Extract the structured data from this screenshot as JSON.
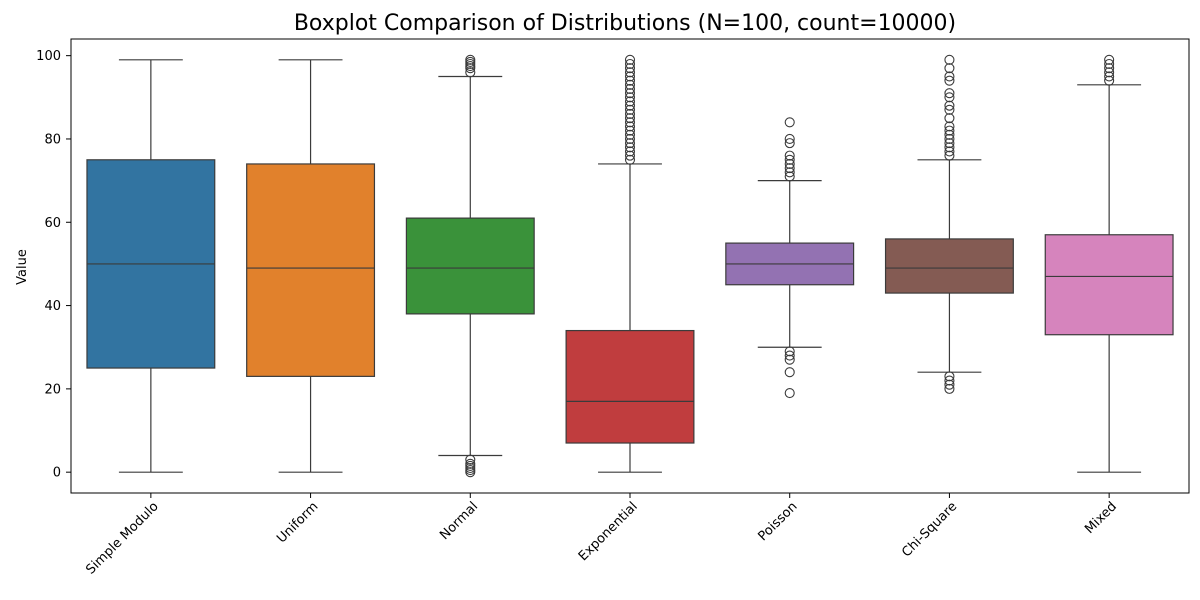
{
  "chart_data": {
    "type": "boxplot",
    "title": "Boxplot Comparison of Distributions (N=100, count=10000)",
    "xlabel": "",
    "ylabel": "Value",
    "ylim": [
      -5,
      104
    ],
    "yticks": [
      0,
      20,
      40,
      60,
      80,
      100
    ],
    "grid": false,
    "categories": [
      "Simple Modulo",
      "Uniform",
      "Normal",
      "Exponential",
      "Poisson",
      "Chi-Square",
      "Mixed"
    ],
    "colors": [
      "#3274a1",
      "#e1812c",
      "#3a923a",
      "#c03d3e",
      "#9372b2",
      "#845b53",
      "#d684bd"
    ],
    "series": [
      {
        "category": "Simple Modulo",
        "whisker_low": 0,
        "q1": 25,
        "median": 50,
        "q3": 75,
        "whisker_high": 99,
        "outliers": []
      },
      {
        "category": "Uniform",
        "whisker_low": 0,
        "q1": 23,
        "median": 49,
        "q3": 74,
        "whisker_high": 99,
        "outliers": []
      },
      {
        "category": "Normal",
        "whisker_low": 4,
        "q1": 38,
        "median": 49,
        "q3": 61,
        "whisker_high": 95,
        "outliers": [
          0,
          0.5,
          1,
          1.5,
          2,
          3,
          96,
          97,
          97.5,
          98,
          98.5,
          99
        ]
      },
      {
        "category": "Exponential",
        "whisker_low": 0,
        "q1": 7,
        "median": 17,
        "q3": 34,
        "whisker_high": 74,
        "outliers": [
          75,
          76,
          77,
          78,
          79,
          80,
          81,
          82,
          83,
          84,
          85,
          86,
          87,
          88,
          89,
          90,
          91,
          92,
          93,
          94,
          95,
          96,
          97,
          98,
          99
        ]
      },
      {
        "category": "Poisson",
        "whisker_low": 30,
        "q1": 45,
        "median": 50,
        "q3": 55,
        "whisker_high": 70,
        "outliers": [
          19,
          24,
          27,
          28,
          29,
          71,
          72,
          73,
          74,
          75,
          76,
          79,
          80,
          84
        ]
      },
      {
        "category": "Chi-Square",
        "whisker_low": 24,
        "q1": 43,
        "median": 49,
        "q3": 56,
        "whisker_high": 75,
        "outliers": [
          20,
          21,
          22,
          23,
          76,
          77,
          78,
          79,
          80,
          81,
          82,
          83,
          85,
          87,
          88,
          90,
          91,
          94,
          95,
          97,
          99
        ]
      },
      {
        "category": "Mixed",
        "whisker_low": 0,
        "q1": 33,
        "median": 47,
        "q3": 57,
        "whisker_high": 93,
        "outliers": [
          94,
          95,
          96,
          97,
          98,
          99
        ]
      }
    ]
  }
}
